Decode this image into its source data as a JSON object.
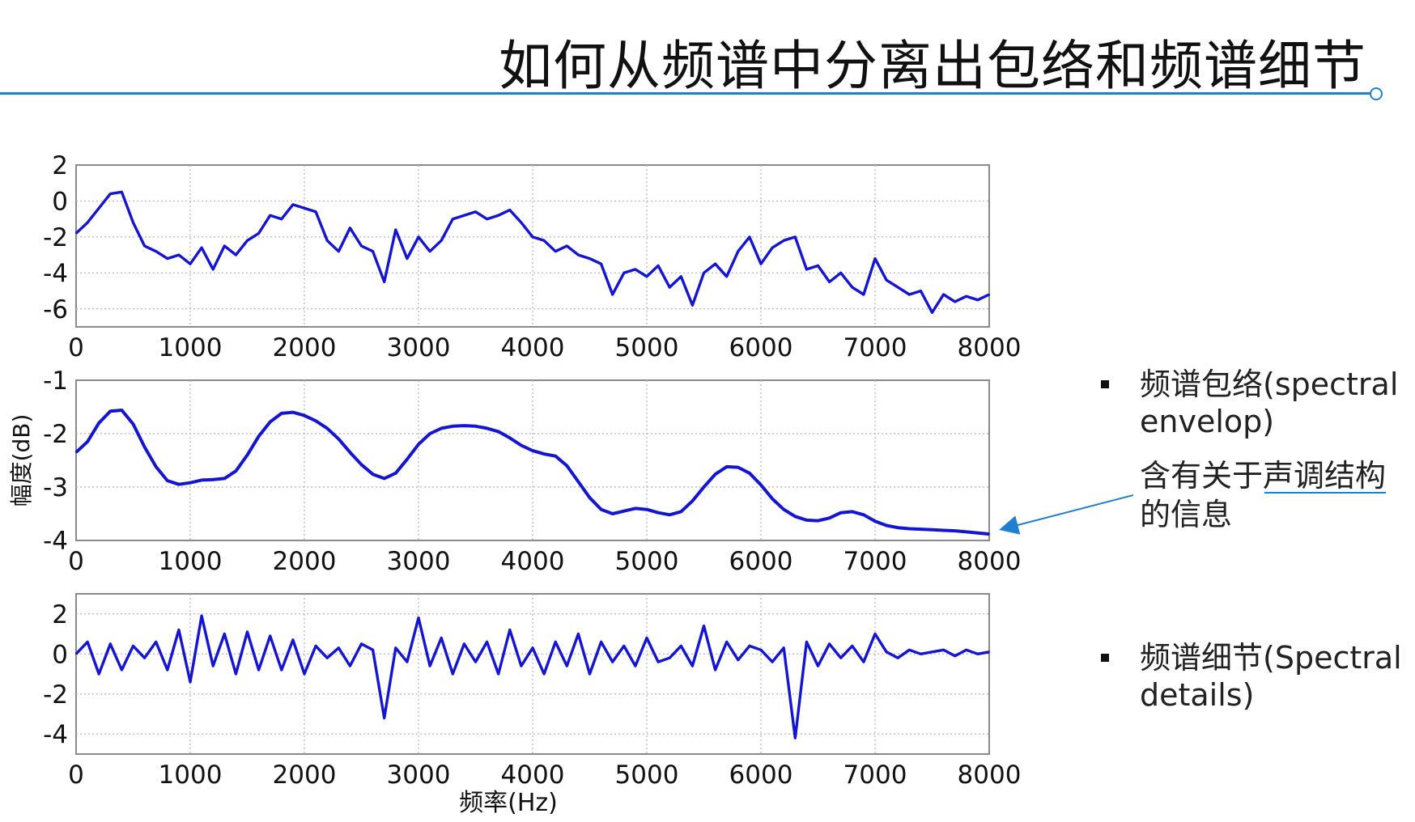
{
  "slide": {
    "title": "如何从频谱中分离出包络和频谱细节",
    "accent_color": "#1f7fd0"
  },
  "bullets": [
    {
      "text": "频谱包络(spectral envelop)"
    },
    {
      "text": "频谱细节(Spectral details)"
    }
  ],
  "note": {
    "text": "含有关于声调结构的信息",
    "underlined_part": "声调结构",
    "pointer": "arrow from note to envelope curve"
  },
  "chart_data": [
    {
      "type": "line",
      "name": "spectrum",
      "color": "#1414d4",
      "xlim": [
        0,
        8000
      ],
      "ylim": [
        -7,
        2
      ],
      "xticks": [
        "0",
        "1000",
        "2000",
        "3000",
        "4000",
        "5000",
        "6000",
        "7000",
        "8000"
      ],
      "yticks": [
        "2",
        "0",
        "-2",
        "-4",
        "-6"
      ],
      "grid": true,
      "x": [
        0,
        100,
        200,
        300,
        400,
        500,
        600,
        700,
        800,
        900,
        1000,
        1100,
        1200,
        1300,
        1400,
        1500,
        1600,
        1700,
        1800,
        1900,
        2000,
        2100,
        2200,
        2300,
        2400,
        2500,
        2600,
        2700,
        2800,
        2900,
        3000,
        3100,
        3200,
        3300,
        3400,
        3500,
        3600,
        3700,
        3800,
        3900,
        4000,
        4100,
        4200,
        4300,
        4400,
        4500,
        4600,
        4700,
        4800,
        4900,
        5000,
        5100,
        5200,
        5300,
        5400,
        5500,
        5600,
        5700,
        5800,
        5900,
        6000,
        6100,
        6200,
        6300,
        6400,
        6500,
        6600,
        6700,
        6800,
        6900,
        7000,
        7100,
        7200,
        7300,
        7400,
        7500,
        7600,
        7700,
        7800,
        7900,
        8000
      ],
      "values": [
        -1.8,
        -1.2,
        -0.4,
        0.4,
        0.5,
        -1.2,
        -2.5,
        -2.8,
        -3.2,
        -3.0,
        -3.5,
        -2.6,
        -3.8,
        -2.5,
        -3.0,
        -2.2,
        -1.8,
        -0.8,
        -1.0,
        -0.2,
        -0.4,
        -0.6,
        -2.2,
        -2.8,
        -1.5,
        -2.5,
        -2.8,
        -4.5,
        -1.6,
        -3.2,
        -2.0,
        -2.8,
        -2.2,
        -1.0,
        -0.8,
        -0.6,
        -1.0,
        -0.8,
        -0.5,
        -1.2,
        -2.0,
        -2.2,
        -2.8,
        -2.5,
        -3.0,
        -3.2,
        -3.5,
        -5.2,
        -4.0,
        -3.8,
        -4.2,
        -3.6,
        -4.8,
        -4.2,
        -5.8,
        -4.0,
        -3.5,
        -4.2,
        -2.8,
        -2.0,
        -3.5,
        -2.6,
        -2.2,
        -2.0,
        -3.8,
        -3.6,
        -4.5,
        -4.0,
        -4.8,
        -5.2,
        -3.2,
        -4.4,
        -4.8,
        -5.2,
        -5.0,
        -6.2,
        -5.2,
        -5.6,
        -5.3,
        -5.5,
        -5.2
      ]
    },
    {
      "type": "line",
      "name": "envelope",
      "color": "#1414d4",
      "xlim": [
        0,
        8000
      ],
      "ylim": [
        -4,
        -1
      ],
      "xticks": [
        "0",
        "1000",
        "2000",
        "3000",
        "4000",
        "5000",
        "6000",
        "7000",
        "8000"
      ],
      "yticks": [
        "-1",
        "-2",
        "-3",
        "-4"
      ],
      "ylabel": "幅度(dB)",
      "grid": true,
      "x": [
        0,
        100,
        200,
        300,
        400,
        500,
        600,
        700,
        800,
        900,
        1000,
        1100,
        1200,
        1300,
        1400,
        1500,
        1600,
        1700,
        1800,
        1900,
        2000,
        2100,
        2200,
        2300,
        2400,
        2500,
        2600,
        2700,
        2800,
        2900,
        3000,
        3100,
        3200,
        3300,
        3400,
        3500,
        3600,
        3700,
        3800,
        3900,
        4000,
        4100,
        4200,
        4300,
        4400,
        4500,
        4600,
        4700,
        4800,
        4900,
        5000,
        5100,
        5200,
        5300,
        5400,
        5500,
        5600,
        5700,
        5800,
        5900,
        6000,
        6100,
        6200,
        6300,
        6400,
        6500,
        6600,
        6700,
        6800,
        6900,
        7000,
        7100,
        7200,
        7300,
        7400,
        7500,
        7600,
        7700,
        7800,
        7900,
        8000
      ],
      "values": [
        -2.35,
        -2.15,
        -1.8,
        -1.58,
        -1.56,
        -1.82,
        -2.25,
        -2.62,
        -2.88,
        -2.95,
        -2.92,
        -2.87,
        -2.86,
        -2.84,
        -2.7,
        -2.4,
        -2.05,
        -1.78,
        -1.62,
        -1.6,
        -1.66,
        -1.76,
        -1.9,
        -2.1,
        -2.35,
        -2.58,
        -2.76,
        -2.84,
        -2.74,
        -2.48,
        -2.2,
        -2.0,
        -1.9,
        -1.86,
        -1.85,
        -1.86,
        -1.9,
        -1.96,
        -2.08,
        -2.22,
        -2.32,
        -2.38,
        -2.42,
        -2.6,
        -2.9,
        -3.2,
        -3.42,
        -3.5,
        -3.45,
        -3.4,
        -3.42,
        -3.48,
        -3.52,
        -3.46,
        -3.26,
        -3.0,
        -2.76,
        -2.62,
        -2.63,
        -2.74,
        -2.96,
        -3.22,
        -3.42,
        -3.55,
        -3.62,
        -3.63,
        -3.58,
        -3.48,
        -3.46,
        -3.52,
        -3.64,
        -3.72,
        -3.76,
        -3.78,
        -3.79,
        -3.8,
        -3.81,
        -3.82,
        -3.84,
        -3.86,
        -3.88
      ]
    },
    {
      "type": "line",
      "name": "details",
      "color": "#1414d4",
      "xlim": [
        0,
        8000
      ],
      "ylim": [
        -5,
        3
      ],
      "xticks": [
        "0",
        "1000",
        "2000",
        "3000",
        "4000",
        "5000",
        "6000",
        "7000",
        "8000"
      ],
      "yticks": [
        "2",
        "0",
        "-2",
        "-4"
      ],
      "xlabel": "频率(Hz)",
      "grid": true,
      "x": [
        0,
        100,
        200,
        300,
        400,
        500,
        600,
        700,
        800,
        900,
        1000,
        1100,
        1200,
        1300,
        1400,
        1500,
        1600,
        1700,
        1800,
        1900,
        2000,
        2100,
        2200,
        2300,
        2400,
        2500,
        2600,
        2700,
        2800,
        2900,
        3000,
        3100,
        3200,
        3300,
        3400,
        3500,
        3600,
        3700,
        3800,
        3900,
        4000,
        4100,
        4200,
        4300,
        4400,
        4500,
        4600,
        4700,
        4800,
        4900,
        5000,
        5100,
        5200,
        5300,
        5400,
        5500,
        5600,
        5700,
        5800,
        5900,
        6000,
        6100,
        6200,
        6300,
        6400,
        6500,
        6600,
        6700,
        6800,
        6900,
        7000,
        7100,
        7200,
        7300,
        7400,
        7500,
        7600,
        7700,
        7800,
        7900,
        8000
      ],
      "values": [
        0.0,
        0.6,
        -1.0,
        0.5,
        -0.8,
        0.4,
        -0.2,
        0.6,
        -0.8,
        1.2,
        -1.4,
        1.9,
        -0.6,
        1.0,
        -1.0,
        1.1,
        -0.8,
        0.9,
        -0.8,
        0.7,
        -1.0,
        0.4,
        -0.2,
        0.3,
        -0.6,
        0.5,
        0.2,
        -3.2,
        0.3,
        -0.4,
        1.8,
        -0.6,
        0.8,
        -1.0,
        0.5,
        -0.4,
        0.6,
        -1.0,
        1.2,
        -0.6,
        0.3,
        -1.0,
        0.6,
        -0.6,
        1.0,
        -1.0,
        0.6,
        -0.4,
        0.4,
        -0.6,
        0.8,
        -0.4,
        -0.2,
        0.4,
        -0.6,
        1.4,
        -0.8,
        0.6,
        -0.3,
        0.4,
        0.2,
        -0.4,
        0.3,
        -4.2,
        0.6,
        -0.6,
        0.5,
        -0.2,
        0.4,
        -0.4,
        1.0,
        0.1,
        -0.2,
        0.2,
        0.0,
        0.1,
        0.2,
        -0.1,
        0.2,
        0.0,
        0.1
      ]
    }
  ]
}
